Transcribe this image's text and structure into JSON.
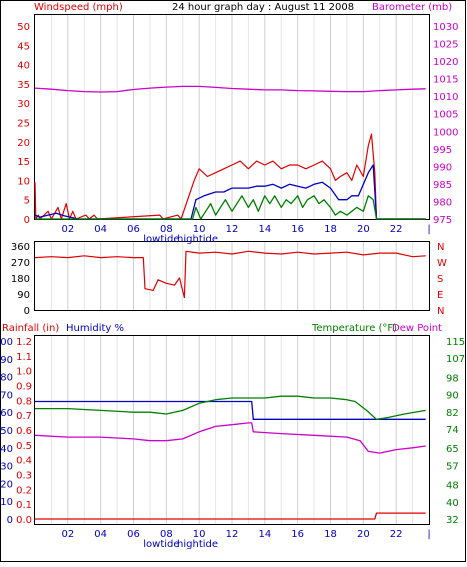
{
  "header": {
    "title": "24 hour graph day : August 11 2008",
    "left_label": "Windspeed (mph)",
    "right_label": "Barometer (mb)"
  },
  "footer_labels": {
    "lowtide": "lowtide",
    "hightide": "hightide"
  },
  "colors": {
    "red": "#e00000",
    "blue": "#0000c0",
    "green": "#008000",
    "magenta": "#cc00cc",
    "grid": "#d8d8d8"
  },
  "chart_data": [
    {
      "type": "line",
      "name": "wind-barometer-panel",
      "title": "24 hour graph day : August 11 2008",
      "x_ticks": [
        "02",
        "04",
        "06",
        "08",
        "10",
        "12",
        "14",
        "16",
        "18",
        "20",
        "22",
        "|"
      ],
      "tide_labels": [
        "lowtide",
        "hightide"
      ],
      "ylabel_left": "Windspeed (mph)",
      "ylabel_right": "Barometer (mb)",
      "ylim_left": [
        0,
        50
      ],
      "yticks_left": [
        "0",
        "5",
        "10",
        "15",
        "20",
        "25",
        "30",
        "35",
        "40",
        "45",
        "50"
      ],
      "ylim_right": [
        975,
        1030
      ],
      "yticks_right": [
        "975",
        "980",
        "985",
        "990",
        "995",
        "1000",
        "1005",
        "1010",
        "1015",
        "1020",
        "1025",
        "1030"
      ],
      "x_hours": [
        0,
        24
      ],
      "series": [
        {
          "key": "barometer",
          "axis": "right",
          "color": "#cc00cc",
          "points": [
            [
              0,
              1012.3
            ],
            [
              1,
              1012.0
            ],
            [
              2,
              1011.6
            ],
            [
              3,
              1011.3
            ],
            [
              4,
              1011.2
            ],
            [
              5,
              1011.3
            ],
            [
              6,
              1011.9
            ],
            [
              7,
              1012.3
            ],
            [
              8,
              1012.6
            ],
            [
              9,
              1012.8
            ],
            [
              10,
              1012.8
            ],
            [
              11,
              1012.5
            ],
            [
              12,
              1012.2
            ],
            [
              13,
              1012.0
            ],
            [
              14,
              1011.8
            ],
            [
              15,
              1011.8
            ],
            [
              16,
              1011.6
            ],
            [
              17,
              1011.5
            ],
            [
              18,
              1011.4
            ],
            [
              19,
              1011.3
            ],
            [
              20,
              1011.3
            ],
            [
              21,
              1011.6
            ],
            [
              22,
              1011.8
            ],
            [
              23,
              1012.0
            ],
            [
              23.8,
              1012.1
            ]
          ]
        },
        {
          "key": "wind-gust",
          "axis": "left",
          "color": "#e00000",
          "points": [
            [
              0,
              9.5
            ],
            [
              0.05,
              0
            ],
            [
              0.2,
              1
            ],
            [
              0.3,
              0
            ],
            [
              0.8,
              2
            ],
            [
              1,
              0
            ],
            [
              1.4,
              3
            ],
            [
              1.6,
              0
            ],
            [
              1.9,
              4
            ],
            [
              2.1,
              0
            ],
            [
              2.3,
              2
            ],
            [
              2.5,
              0
            ],
            [
              3.1,
              1
            ],
            [
              3.3,
              0
            ],
            [
              3.6,
              1
            ],
            [
              3.8,
              0
            ],
            [
              7.6,
              1
            ],
            [
              7.8,
              0
            ],
            [
              8.7,
              1
            ],
            [
              8.9,
              0
            ],
            [
              9.7,
              10
            ],
            [
              10,
              13
            ],
            [
              10.5,
              11
            ],
            [
              11,
              12
            ],
            [
              11.5,
              13
            ],
            [
              12,
              14
            ],
            [
              12.5,
              15
            ],
            [
              13,
              13
            ],
            [
              13.5,
              15
            ],
            [
              14,
              14
            ],
            [
              14.5,
              15
            ],
            [
              15,
              13
            ],
            [
              15.5,
              14
            ],
            [
              16,
              14
            ],
            [
              16.5,
              13
            ],
            [
              17,
              14
            ],
            [
              17.5,
              15
            ],
            [
              18,
              13
            ],
            [
              18.3,
              10
            ],
            [
              18.6,
              11
            ],
            [
              19,
              12
            ],
            [
              19.3,
              10
            ],
            [
              19.6,
              14
            ],
            [
              20,
              11
            ],
            [
              20.3,
              19
            ],
            [
              20.5,
              22
            ],
            [
              20.7,
              12
            ],
            [
              20.8,
              0
            ],
            [
              23.8,
              0
            ]
          ]
        },
        {
          "key": "wind-average",
          "axis": "left",
          "color": "#0000c0",
          "points": [
            [
              0,
              1
            ],
            [
              0.3,
              0.5
            ],
            [
              0.8,
              1
            ],
            [
              1.3,
              1.5
            ],
            [
              1.8,
              0.8
            ],
            [
              2.3,
              0.3
            ],
            [
              2.6,
              0
            ],
            [
              9.5,
              0
            ],
            [
              9.8,
              5
            ],
            [
              10.3,
              6
            ],
            [
              11,
              7
            ],
            [
              11.5,
              7
            ],
            [
              12,
              8
            ],
            [
              12.5,
              8
            ],
            [
              13,
              8
            ],
            [
              13.5,
              8.5
            ],
            [
              14,
              8.5
            ],
            [
              14.5,
              9
            ],
            [
              15,
              8
            ],
            [
              15.5,
              9
            ],
            [
              16,
              8.5
            ],
            [
              16.5,
              8
            ],
            [
              17,
              9
            ],
            [
              17.5,
              9.5
            ],
            [
              18,
              8
            ],
            [
              18.5,
              5
            ],
            [
              19,
              5
            ],
            [
              19.3,
              6
            ],
            [
              19.7,
              6
            ],
            [
              20.3,
              12
            ],
            [
              20.6,
              14
            ],
            [
              20.8,
              0
            ],
            [
              23.8,
              0
            ]
          ]
        },
        {
          "key": "wind-low",
          "axis": "left",
          "color": "#008000",
          "points": [
            [
              0,
              0
            ],
            [
              9.6,
              0
            ],
            [
              9.8,
              3
            ],
            [
              10.1,
              0
            ],
            [
              10.4,
              2
            ],
            [
              10.7,
              4
            ],
            [
              11,
              1
            ],
            [
              11.3,
              3
            ],
            [
              11.6,
              5
            ],
            [
              12,
              2
            ],
            [
              12.3,
              4
            ],
            [
              12.6,
              6
            ],
            [
              13,
              3
            ],
            [
              13.3,
              5
            ],
            [
              13.6,
              2
            ],
            [
              14,
              6
            ],
            [
              14.3,
              4
            ],
            [
              14.6,
              6
            ],
            [
              15,
              3
            ],
            [
              15.3,
              5
            ],
            [
              15.6,
              4
            ],
            [
              16,
              6
            ],
            [
              16.3,
              3
            ],
            [
              16.6,
              5
            ],
            [
              17,
              6
            ],
            [
              17.3,
              4
            ],
            [
              17.6,
              5
            ],
            [
              18,
              3
            ],
            [
              18.3,
              1
            ],
            [
              18.6,
              2
            ],
            [
              19,
              1
            ],
            [
              19.3,
              2
            ],
            [
              19.6,
              3
            ],
            [
              20,
              2
            ],
            [
              20.3,
              6
            ],
            [
              20.6,
              5
            ],
            [
              20.8,
              0
            ],
            [
              23.8,
              0
            ]
          ]
        }
      ]
    },
    {
      "type": "line",
      "name": "wind-direction-panel",
      "ylim": [
        0,
        360
      ],
      "yticks_left": [
        "0",
        "90",
        "180",
        "270",
        "360"
      ],
      "direction_letters": [
        "N",
        "W",
        "S",
        "E",
        "N"
      ],
      "series": [
        {
          "key": "wind-direction",
          "color": "#e00000",
          "points": [
            [
              0,
              295
            ],
            [
              1,
              300
            ],
            [
              2,
              295
            ],
            [
              3,
              305
            ],
            [
              4,
              295
            ],
            [
              5,
              300
            ],
            [
              6,
              295
            ],
            [
              6.6,
              295
            ],
            [
              6.7,
              120
            ],
            [
              7.2,
              110
            ],
            [
              7.5,
              170
            ],
            [
              8,
              150
            ],
            [
              8.5,
              140
            ],
            [
              8.8,
              180
            ],
            [
              9.1,
              70
            ],
            [
              9.2,
              330
            ],
            [
              10,
              320
            ],
            [
              11,
              325
            ],
            [
              12,
              315
            ],
            [
              13,
              330
            ],
            [
              14,
              320
            ],
            [
              15,
              315
            ],
            [
              16,
              325
            ],
            [
              17,
              315
            ],
            [
              18,
              320
            ],
            [
              19,
              325
            ],
            [
              20,
              310
            ],
            [
              21,
              320
            ],
            [
              22,
              320
            ],
            [
              23,
              300
            ],
            [
              23.8,
              305
            ]
          ]
        }
      ]
    },
    {
      "type": "line",
      "name": "rain-humidity-temperature-panel",
      "ylabel_left_1": "Rainfall (in)",
      "ylabel_left_2": "Humidity %",
      "ylabel_right_1": "Temperature (°F)",
      "ylabel_right_2": "Dew Point",
      "yticks_humidity": [
        "0",
        "10",
        "20",
        "30",
        "40",
        "50",
        "60",
        "70",
        "80",
        "90",
        "100"
      ],
      "yticks_rain": [
        "0.0",
        "0.1",
        "0.2",
        "0.3",
        "0.4",
        "0.5",
        "0.6",
        "0.7",
        "0.8",
        "0.9",
        "1.0",
        "1.1",
        "1.2"
      ],
      "yticks_temp": [
        "32",
        "40",
        "48",
        "57",
        "65",
        "74",
        "82",
        "90",
        "98",
        "107",
        "115"
      ],
      "ylim_humidity": [
        0,
        100
      ],
      "ylim_temp": [
        32,
        115
      ],
      "series": [
        {
          "key": "humidity",
          "axis": "humidity",
          "color": "#0000c0",
          "points": [
            [
              0,
              66
            ],
            [
              13.2,
              66
            ],
            [
              13.3,
              56
            ],
            [
              23.8,
              56
            ]
          ]
        },
        {
          "key": "temperature",
          "axis": "humidity",
          "color": "#008000",
          "points": [
            [
              0,
              62
            ],
            [
              2,
              62
            ],
            [
              4,
              61
            ],
            [
              6,
              60
            ],
            [
              7,
              60
            ],
            [
              8,
              59
            ],
            [
              9,
              61
            ],
            [
              10,
              65
            ],
            [
              11,
              67
            ],
            [
              12,
              68
            ],
            [
              13,
              68
            ],
            [
              14,
              68
            ],
            [
              15,
              69
            ],
            [
              16,
              69
            ],
            [
              17,
              68
            ],
            [
              18,
              68
            ],
            [
              19,
              67
            ],
            [
              19.5,
              66
            ],
            [
              20.2,
              61
            ],
            [
              20.8,
              56
            ],
            [
              21.5,
              57
            ],
            [
              22.5,
              59
            ],
            [
              23.8,
              61
            ]
          ]
        },
        {
          "key": "dew-point",
          "axis": "humidity",
          "color": "#cc00cc",
          "points": [
            [
              0,
              47
            ],
            [
              2,
              46
            ],
            [
              4,
              46
            ],
            [
              6,
              45
            ],
            [
              7,
              44
            ],
            [
              8,
              44
            ],
            [
              9,
              45
            ],
            [
              10,
              49
            ],
            [
              11,
              52
            ],
            [
              12,
              53
            ],
            [
              13,
              54
            ],
            [
              13.2,
              54
            ],
            [
              13.3,
              49
            ],
            [
              15,
              48
            ],
            [
              17,
              47
            ],
            [
              19,
              46
            ],
            [
              19.8,
              44
            ],
            [
              20.3,
              38
            ],
            [
              21,
              37
            ],
            [
              22,
              39
            ],
            [
              23,
              40
            ],
            [
              23.8,
              41
            ]
          ]
        },
        {
          "key": "rainfall",
          "axis": "rain",
          "color": "#e00000",
          "points": [
            [
              0,
              0.0
            ],
            [
              20.7,
              0.0
            ],
            [
              20.8,
              0.04
            ],
            [
              23.8,
              0.04
            ]
          ]
        }
      ]
    }
  ]
}
